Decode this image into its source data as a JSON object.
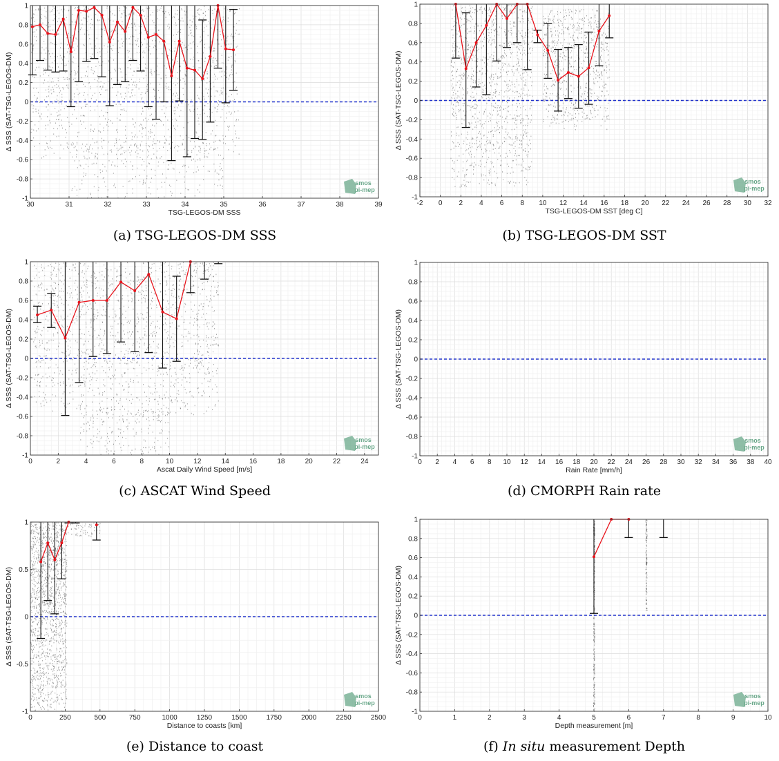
{
  "chart_data": [
    {
      "id": "a",
      "type": "scatter",
      "caption_label": "(a)",
      "caption_text": "TSG-LEGOS-DM SSS",
      "caption_italic": "",
      "xlabel": "TSG-LEGOS-DM SSS",
      "ylabel": "Δ SSS (SAT-TSG-LEGOS-DM)",
      "xlim": [
        30,
        39
      ],
      "ylim": [
        -1,
        1
      ],
      "xticks": [
        30,
        31,
        32,
        33,
        34,
        35,
        36,
        37,
        38,
        39
      ],
      "yticks": [
        -1,
        -0.8,
        -0.6,
        -0.4,
        -0.2,
        0,
        0.2,
        0.4,
        0.6,
        0.8,
        1
      ],
      "ytick_labels": [
        "-1",
        "-0.8",
        "-0.6",
        "-0.4",
        "-0.2",
        "0",
        "0.2",
        "0.4",
        "0.6",
        "0.8",
        "1"
      ],
      "reference_line": 0,
      "grid": true,
      "mean_line": {
        "x": [
          30.05,
          30.25,
          30.45,
          30.65,
          30.85,
          31.05,
          31.25,
          31.45,
          31.65,
          31.85,
          32.05,
          32.25,
          32.45,
          32.65,
          32.85,
          33.05,
          33.25,
          33.45,
          33.65,
          33.85,
          34.05,
          34.25,
          34.45,
          34.65,
          34.85,
          35.05,
          35.25
        ],
        "y": [
          0.78,
          0.8,
          0.71,
          0.7,
          0.86,
          0.52,
          0.95,
          0.94,
          0.98,
          0.9,
          0.62,
          0.83,
          0.73,
          0.98,
          0.9,
          0.67,
          0.7,
          0.63,
          0.27,
          0.63,
          0.35,
          0.33,
          0.24,
          0.47,
          1.0,
          0.55,
          0.54
        ]
      },
      "error_bars": {
        "x": [
          30.05,
          30.25,
          30.45,
          30.65,
          30.85,
          31.05,
          31.25,
          31.45,
          31.65,
          31.85,
          32.05,
          32.25,
          32.45,
          32.65,
          32.85,
          33.05,
          33.25,
          33.45,
          33.65,
          33.85,
          34.05,
          34.25,
          34.45,
          34.65,
          34.85,
          35.05,
          35.25
        ],
        "low": [
          0.28,
          0.43,
          0.33,
          0.31,
          0.32,
          -0.05,
          0.21,
          0.42,
          0.45,
          0.26,
          -0.04,
          0.18,
          0.21,
          0.43,
          0.32,
          -0.05,
          -0.18,
          0.0,
          -0.61,
          0.01,
          -0.57,
          -0.38,
          -0.39,
          -0.21,
          0.35,
          -0.01,
          0.12
        ],
        "high": [
          1.0,
          1.0,
          1.0,
          1.0,
          1.0,
          1.0,
          1.0,
          1.0,
          1.0,
          1.0,
          1.0,
          1.0,
          1.0,
          1.0,
          1.0,
          1.0,
          1.0,
          1.0,
          1.0,
          1.0,
          1.0,
          1.0,
          0.85,
          1.0,
          1.0,
          1.0,
          0.96
        ]
      },
      "scatter_clusters": [
        {
          "x": [
            30.0,
            35.4
          ],
          "y": [
            -0.6,
            1.0
          ],
          "n": 1400
        },
        {
          "x": [
            31.0,
            35.0
          ],
          "y": [
            -1.0,
            -0.4
          ],
          "n": 300
        }
      ]
    },
    {
      "id": "b",
      "type": "scatter",
      "caption_label": "(b)",
      "caption_text": "TSG-LEGOS-DM SST",
      "caption_italic": "",
      "xlabel": "TSG-LEGOS-DM SST [deg C]",
      "ylabel": "Δ SSS (SAT-TSG-LEGOS-DM)",
      "xlim": [
        -2,
        32
      ],
      "ylim": [
        -1,
        1
      ],
      "xticks": [
        -2,
        0,
        2,
        4,
        6,
        8,
        10,
        12,
        14,
        16,
        18,
        20,
        22,
        24,
        26,
        28,
        30,
        32
      ],
      "yticks": [
        -1,
        -0.8,
        -0.6,
        -0.4,
        -0.2,
        0,
        0.2,
        0.4,
        0.6,
        0.8,
        1
      ],
      "ytick_labels": [
        "-1",
        "-0.8",
        "-0.6",
        "-0.4",
        "-0.2",
        "0",
        "0.2",
        "0.4",
        "0.6",
        "0.8",
        "1"
      ],
      "reference_line": 0,
      "grid": true,
      "mean_line": {
        "x": [
          1.5,
          2.5,
          3.5,
          4.5,
          5.5,
          6.5,
          7.5,
          8.5,
          9.5,
          10.5,
          11.5,
          12.5,
          13.5,
          14.5,
          15.5,
          16.5
        ],
        "y": [
          1.0,
          0.33,
          0.6,
          0.78,
          1.0,
          0.85,
          1.0,
          1.0,
          0.68,
          0.52,
          0.21,
          0.29,
          0.25,
          0.34,
          0.72,
          0.88
        ]
      },
      "error_bars": {
        "x": [
          1.5,
          2.5,
          3.5,
          4.5,
          5.5,
          6.5,
          7.5,
          8.5,
          9.5,
          10.5,
          11.5,
          12.5,
          13.5,
          14.5,
          15.5,
          16.5
        ],
        "low": [
          0.44,
          -0.28,
          0.14,
          0.06,
          0.41,
          0.55,
          0.6,
          0.32,
          0.6,
          0.23,
          -0.11,
          0.02,
          -0.08,
          -0.04,
          0.36,
          0.65
        ],
        "high": [
          1.0,
          0.91,
          1.0,
          1.0,
          1.0,
          1.0,
          1.0,
          1.0,
          0.73,
          0.8,
          0.53,
          0.55,
          0.58,
          0.71,
          1.0,
          1.0
        ]
      },
      "scatter_clusters": [
        {
          "x": [
            1.0,
            9.0
          ],
          "y": [
            -0.9,
            1.0
          ],
          "n": 1200
        },
        {
          "x": [
            10.0,
            16.5
          ],
          "y": [
            -0.3,
            0.95
          ],
          "n": 700
        }
      ]
    },
    {
      "id": "c",
      "type": "scatter",
      "caption_label": "(c)",
      "caption_text": "ASCAT Wind Speed",
      "caption_italic": "",
      "xlabel": "Ascat Daily Wind Speed [m/s]",
      "ylabel": "Δ SSS (SAT-TSG-LEGOS-DM)",
      "xlim": [
        0,
        25
      ],
      "ylim": [
        -1,
        1
      ],
      "xticks": [
        0,
        2,
        4,
        6,
        8,
        10,
        12,
        14,
        16,
        18,
        20,
        22,
        24
      ],
      "yticks": [
        -1,
        -0.8,
        -0.6,
        -0.4,
        -0.2,
        0,
        0.2,
        0.4,
        0.6,
        0.8,
        1
      ],
      "ytick_labels": [
        "-1",
        "-0.8",
        "-0.6",
        "-0.4",
        "-0.2",
        "0",
        "0.2",
        "0.4",
        "0.6",
        "0.8",
        "1"
      ],
      "reference_line": 0,
      "grid": true,
      "mean_line": {
        "x": [
          0.5,
          1.5,
          2.5,
          3.5,
          4.5,
          5.5,
          6.5,
          7.5,
          8.5,
          9.5,
          10.5,
          11.5
        ],
        "y": [
          0.45,
          0.5,
          0.21,
          0.58,
          0.6,
          0.6,
          0.79,
          0.7,
          0.87,
          0.48,
          0.41,
          1.0
        ]
      },
      "error_bars": {
        "x": [
          0.5,
          1.5,
          2.5,
          3.5,
          4.5,
          5.5,
          6.5,
          7.5,
          8.5,
          9.5,
          10.5,
          11.5,
          12.5,
          13.5
        ],
        "low": [
          0.37,
          0.32,
          -0.59,
          -0.25,
          0.02,
          0.05,
          0.17,
          0.07,
          0.06,
          -0.1,
          -0.03,
          0.68,
          0.82,
          0.98
        ],
        "high": [
          0.54,
          0.67,
          1.0,
          1.0,
          1.0,
          1.0,
          1.0,
          1.0,
          1.0,
          1.0,
          0.85,
          1.0,
          1.0,
          1.0
        ]
      },
      "scatter_clusters": [
        {
          "x": [
            0.2,
            13.5
          ],
          "y": [
            -0.6,
            1.0
          ],
          "n": 1500
        },
        {
          "x": [
            3.5,
            10.0
          ],
          "y": [
            -1.0,
            -0.5
          ],
          "n": 200
        }
      ]
    },
    {
      "id": "d",
      "type": "scatter",
      "caption_label": "(d)",
      "caption_text": "CMORPH Rain rate",
      "caption_italic": "",
      "xlabel": "Rain Rate [mm/h]",
      "ylabel": "Δ SSS (SAT-TSG-LEGOS-DM)",
      "xlim": [
        0,
        40
      ],
      "ylim": [
        -1,
        1
      ],
      "xticks": [
        0,
        2,
        4,
        6,
        8,
        10,
        12,
        14,
        16,
        18,
        20,
        22,
        24,
        26,
        28,
        30,
        32,
        34,
        36,
        38,
        40
      ],
      "yticks": [
        -1,
        -0.8,
        -0.6,
        -0.4,
        -0.2,
        0,
        0.2,
        0.4,
        0.6,
        0.8,
        1
      ],
      "ytick_labels": [
        "-1",
        "-0.8",
        "-0.6",
        "-0.4",
        "-0.2",
        "0",
        "0.2",
        "0.4",
        "0.6",
        "0.8",
        "1"
      ],
      "reference_line": 0,
      "grid": true,
      "mean_line": {
        "x": [],
        "y": []
      },
      "error_bars": {
        "x": [],
        "low": [],
        "high": []
      },
      "scatter_clusters": []
    },
    {
      "id": "e",
      "type": "scatter",
      "caption_label": "(e)",
      "caption_text": "Distance to coast",
      "caption_italic": "",
      "xlabel": "Distance to coasts [km]",
      "ylabel": "Δ SSS (SAT-TSG-LEGOS-DM)",
      "xlim": [
        0,
        2500
      ],
      "ylim": [
        -1,
        1
      ],
      "xticks": [
        0,
        250,
        500,
        750,
        1000,
        1250,
        1500,
        1750,
        2000,
        2250,
        2500
      ],
      "yticks": [
        -1,
        -0.5,
        0,
        0.5,
        1
      ],
      "ytick_labels": [
        "-1",
        "-0.5",
        "0",
        "0.5",
        "1"
      ],
      "reference_line": 0,
      "grid": true,
      "mean_line": {
        "x": [
          75,
          125,
          175,
          225,
          275
        ],
        "y": [
          0.58,
          0.78,
          0.6,
          0.78,
          1.0
        ]
      },
      "mean_line_extra": {
        "x": [
          475
        ],
        "y": [
          0.97
        ]
      },
      "error_bars": {
        "x": [
          75,
          125,
          175,
          225,
          275,
          325,
          475
        ],
        "low": [
          -0.23,
          0.17,
          0.03,
          0.4,
          0.99,
          0.99,
          0.81
        ],
        "high": [
          1.0,
          1.0,
          1.0,
          1.0,
          1.0,
          1.0,
          1.0
        ]
      },
      "scatter_clusters": [
        {
          "x": [
            0,
            260
          ],
          "y": [
            -1.0,
            1.0
          ],
          "n": 1400
        },
        {
          "x": [
            260,
            500
          ],
          "y": [
            0.85,
            1.0
          ],
          "n": 60
        }
      ]
    },
    {
      "id": "f",
      "type": "scatter",
      "caption_label": "(f)",
      "caption_text": " measurement Depth",
      "caption_italic": "In situ",
      "xlabel": "Depth measurement [m]",
      "ylabel": "Δ SSS (SAT-TSG-LEGOS-DM)",
      "xlim": [
        0,
        10
      ],
      "ylim": [
        -1,
        1
      ],
      "xticks": [
        0,
        1,
        2,
        3,
        4,
        5,
        6,
        7,
        8,
        9,
        10
      ],
      "yticks": [
        -1,
        -0.8,
        -0.6,
        -0.4,
        -0.2,
        0,
        0.2,
        0.4,
        0.6,
        0.8,
        1
      ],
      "ytick_labels": [
        "-1",
        "-0.8",
        "-0.6",
        "-0.4",
        "-0.2",
        "0",
        "0.2",
        "0.4",
        "0.6",
        "0.8",
        "1"
      ],
      "reference_line": 0,
      "grid": true,
      "mean_line": {
        "x": [
          5,
          5.5,
          6
        ],
        "y": [
          0.61,
          1.0,
          1.0
        ]
      },
      "error_bars": {
        "x": [
          5,
          6,
          7
        ],
        "low": [
          0.02,
          0.81,
          0.81
        ],
        "high": [
          1.0,
          1.0,
          1.0
        ]
      },
      "scatter_clusters": [
        {
          "x": [
            4.98,
            5.02
          ],
          "y": [
            -1.0,
            1.0
          ],
          "n": 250
        },
        {
          "x": [
            6.48,
            6.52
          ],
          "y": [
            0.05,
            1.0
          ],
          "n": 120
        }
      ]
    }
  ],
  "watermark": {
    "line1": "smos",
    "line2": "pi-mep"
  },
  "colors": {
    "mean_line": "#e8141c",
    "error_bar": "#111111",
    "scatter": "#555555",
    "zero_line": "#2233cc",
    "grid": "#e4e4e4",
    "logo": "#6aa88a"
  }
}
